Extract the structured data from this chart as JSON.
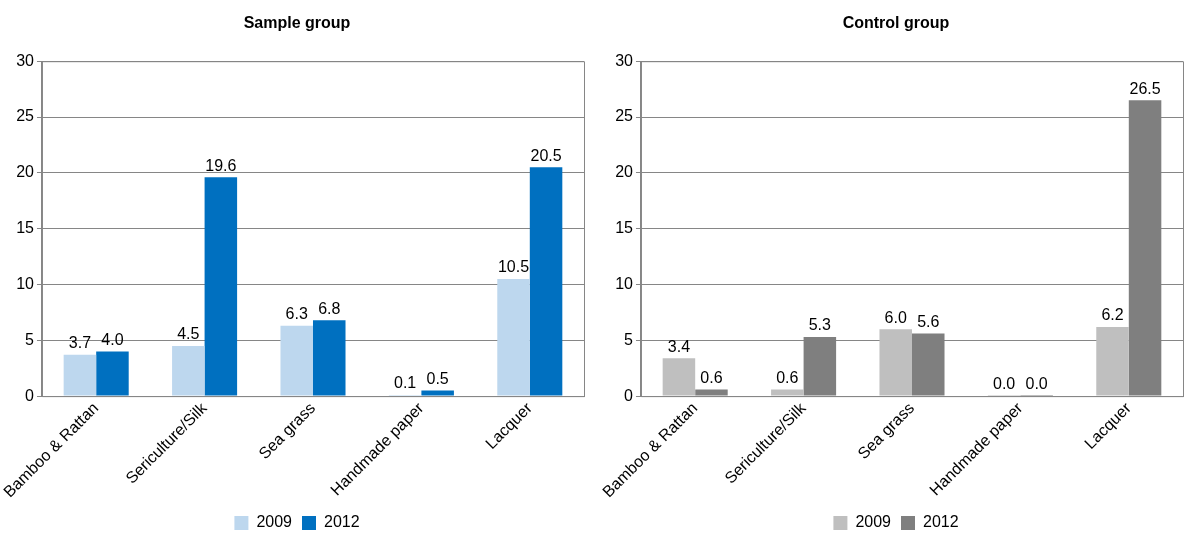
{
  "chart_data": [
    {
      "type": "bar",
      "title": "Sample group",
      "categories": [
        "Bamboo & Rattan",
        "Sericulture/Silk",
        "Sea grass",
        "Handmade paper",
        "Lacquer"
      ],
      "series": [
        {
          "name": "2009",
          "color": "#bdd7ee",
          "values": [
            3.7,
            4.5,
            6.3,
            0.1,
            10.5
          ],
          "value_labels": [
            "3.7",
            "4.5",
            "6.3",
            "0.1",
            "10.5"
          ]
        },
        {
          "name": "2012",
          "color": "#0070c0",
          "values": [
            4.0,
            19.6,
            6.8,
            0.5,
            20.5
          ],
          "value_labels": [
            "4.0",
            "19.6",
            "6.8",
            "0.5",
            "20.5"
          ]
        }
      ],
      "ylim": [
        0,
        30
      ],
      "yticks": [
        0,
        5,
        10,
        15,
        20,
        25,
        30
      ],
      "grid": "y",
      "legend": "bottom"
    },
    {
      "type": "bar",
      "title": "Control group",
      "categories": [
        "Bamboo & Rattan",
        "Sericulture/Silk",
        "Sea grass",
        "Handmade paper",
        "Lacquer"
      ],
      "series": [
        {
          "name": "2009",
          "color": "#bfbfbf",
          "values": [
            3.4,
            0.6,
            6.0,
            0.0,
            6.2
          ],
          "value_labels": [
            "3.4",
            "0.6",
            "6.0",
            "0.0",
            "6.2"
          ]
        },
        {
          "name": "2012",
          "color": "#7f7f7f",
          "values": [
            0.6,
            5.3,
            5.6,
            0.0,
            26.5
          ],
          "value_labels": [
            "0.6",
            "5.3",
            "5.6",
            "0.0",
            "26.5"
          ]
        }
      ],
      "ylim": [
        0,
        30
      ],
      "yticks": [
        0,
        5,
        10,
        15,
        20,
        25,
        30
      ],
      "grid": "y",
      "legend": "bottom"
    }
  ]
}
